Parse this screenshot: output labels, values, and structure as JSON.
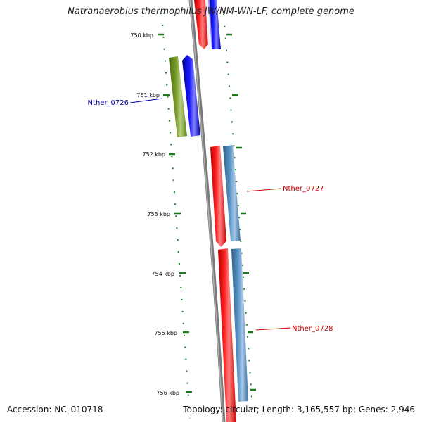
{
  "title": "Natranaerobius thermophilus JW/NM-WN-LF, complete genome",
  "footer": {
    "accession": "Accession: NC_010718",
    "topology": "Topology: circular; Length: 3,165,557 bp; Genes: 2,946"
  },
  "ticks": {
    "t750": "750 kbp",
    "t751": "751 kbp",
    "t752": "752 kbp",
    "t753": "753 kbp",
    "t754": "754 kbp",
    "t755": "755 kbp",
    "t756": "756 kbp"
  },
  "genes": {
    "nther0726": {
      "label": "Nther_0726",
      "color": "#0000aa"
    },
    "nther0727": {
      "label": "Nther_0727",
      "color": "#cc0000"
    },
    "nther0728": {
      "label": "Nther_0728",
      "color": "#cc0000"
    }
  },
  "colors": {
    "forward_cds": "#ff0000",
    "gene_blue": "#0000ff",
    "gene_olive": "#6b8e23",
    "gene_steel": "#4682b4",
    "backbone": "#808080",
    "tick_green": "#1a7a1a"
  }
}
